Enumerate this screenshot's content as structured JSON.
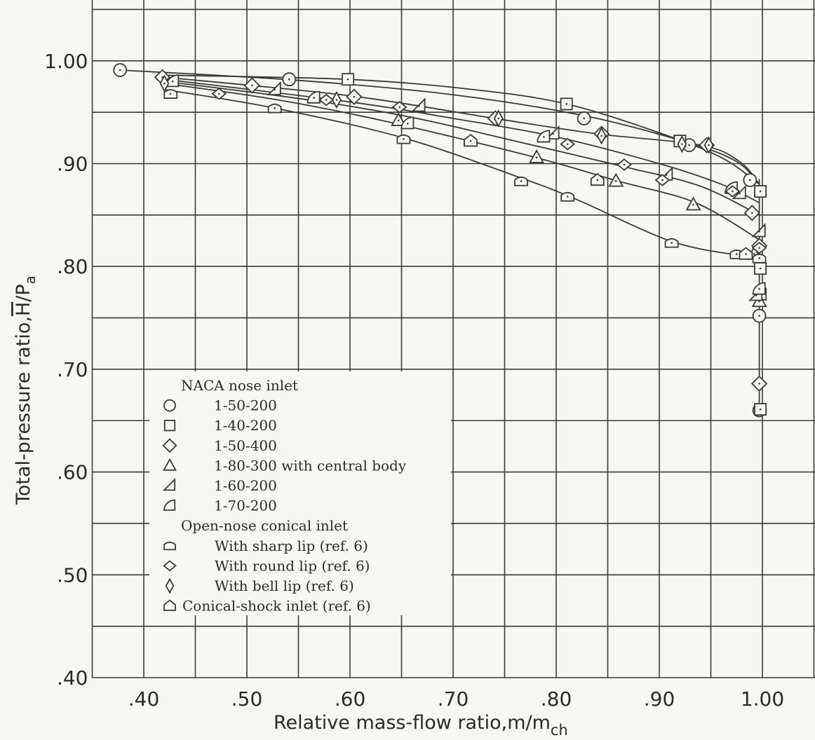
{
  "chart_data": {
    "type": "scatter",
    "title": "",
    "xlabel": "Relative  mass-flow ratio,m/m",
    "xlabel_sub": "ch",
    "ylabel": "Total-pressure ratio,",
    "ylabel_symbol": "H",
    "ylabel_tail": "/P",
    "ylabel_sub": "a",
    "xlim": [
      0.35,
      1.06
    ],
    "ylim": [
      0.4,
      1.05
    ],
    "grid": true,
    "x_ticks": [
      0.4,
      0.5,
      0.6,
      0.7,
      0.8,
      0.9,
      1.0
    ],
    "x_tick_labels": [
      ".40",
      ".50",
      ".60",
      ".70",
      ".80",
      ".90",
      "1.00"
    ],
    "y_ticks": [
      0.4,
      0.5,
      0.6,
      0.7,
      0.8,
      0.9,
      1.0
    ],
    "y_tick_labels": [
      ".40",
      ".50",
      ".60",
      ".70",
      ".80",
      ".90",
      "1.00"
    ],
    "legend": {
      "placement": "lower-left",
      "entries": [
        {
          "kind": "header",
          "text": "NACA nose inlet"
        },
        {
          "kind": "entry",
          "marker": "circle",
          "text": "1-50-200"
        },
        {
          "kind": "entry",
          "marker": "square",
          "text": "1-40-200"
        },
        {
          "kind": "entry",
          "marker": "diamond",
          "text": "1-50-400"
        },
        {
          "kind": "entry",
          "marker": "triangle",
          "text": "1-80-300 with central body"
        },
        {
          "kind": "entry",
          "marker": "half-triangle",
          "text": "1-60-200"
        },
        {
          "kind": "entry",
          "marker": "half-d",
          "text": "1-70-200"
        },
        {
          "kind": "header",
          "text": "Open-nose conical inlet"
        },
        {
          "kind": "entry",
          "marker": "flat-square",
          "text": "With sharp lip (ref. 6)"
        },
        {
          "kind": "entry",
          "marker": "flat-diamond",
          "text": "With round lip (ref. 6)"
        },
        {
          "kind": "entry",
          "marker": "narrow-diamond",
          "text": "With bell lip (ref. 6)"
        },
        {
          "kind": "entry",
          "marker": "pentagon",
          "text": "Conical-shock inlet (ref. 6)"
        }
      ]
    },
    "series": [
      {
        "marker": "circle",
        "points": [
          [
            0.377,
            0.991
          ],
          [
            0.541,
            0.982
          ],
          [
            0.827,
            0.944
          ],
          [
            0.929,
            0.918
          ],
          [
            0.988,
            0.884
          ],
          [
            0.997,
            0.752
          ],
          [
            0.997,
            0.66
          ]
        ]
      },
      {
        "marker": "square",
        "points": [
          [
            0.598,
            0.982
          ],
          [
            0.81,
            0.958
          ],
          [
            0.92,
            0.922
          ],
          [
            0.998,
            0.873
          ],
          [
            0.998,
            0.798
          ],
          [
            0.998,
            0.773
          ],
          [
            0.998,
            0.661
          ]
        ]
      },
      {
        "marker": "diamond",
        "points": [
          [
            0.418,
            0.984
          ],
          [
            0.505,
            0.976
          ],
          [
            0.604,
            0.965
          ],
          [
            0.741,
            0.944
          ],
          [
            0.844,
            0.929
          ],
          [
            0.946,
            0.918
          ],
          [
            0.99,
            0.852
          ],
          [
            0.997,
            0.82
          ],
          [
            0.997,
            0.686
          ]
        ]
      },
      {
        "marker": "triangle",
        "points": [
          [
            0.647,
            0.942
          ],
          [
            0.781,
            0.906
          ],
          [
            0.858,
            0.883
          ],
          [
            0.933,
            0.86
          ],
          [
            0.992,
            0.812
          ],
          [
            0.997,
            0.766
          ]
        ]
      },
      {
        "marker": "half-triangle",
        "points": [
          [
            0.527,
            0.972
          ],
          [
            0.667,
            0.956
          ],
          [
            0.797,
            0.929
          ],
          [
            0.907,
            0.889
          ],
          [
            0.978,
            0.871
          ],
          [
            0.997,
            0.834
          ],
          [
            0.994,
            0.772
          ]
        ]
      },
      {
        "marker": "half-d",
        "points": [
          [
            0.428,
            0.98
          ],
          [
            0.565,
            0.964
          ],
          [
            0.656,
            0.939
          ],
          [
            0.788,
            0.926
          ],
          [
            0.97,
            0.876
          ],
          [
            0.997,
            0.778
          ]
        ]
      },
      {
        "marker": "flat-square",
        "points": [
          [
            0.426,
            0.968
          ],
          [
            0.527,
            0.954
          ],
          [
            0.652,
            0.924
          ],
          [
            0.766,
            0.883
          ],
          [
            0.811,
            0.868
          ],
          [
            0.912,
            0.823
          ],
          [
            0.975,
            0.812
          ],
          [
            0.997,
            0.808
          ]
        ]
      },
      {
        "marker": "flat-diamond",
        "points": [
          [
            0.473,
            0.968
          ],
          [
            0.577,
            0.962
          ],
          [
            0.648,
            0.955
          ],
          [
            0.811,
            0.919
          ],
          [
            0.866,
            0.899
          ],
          [
            0.903,
            0.884
          ],
          [
            0.971,
            0.873
          ],
          [
            0.997,
            0.818
          ]
        ]
      },
      {
        "marker": "narrow-diamond",
        "points": [
          [
            0.42,
            0.978
          ],
          [
            0.587,
            0.962
          ],
          [
            0.744,
            0.944
          ],
          [
            0.844,
            0.927
          ],
          [
            0.922,
            0.919
          ],
          [
            0.948,
            0.918
          ]
        ]
      },
      {
        "marker": "pentagon",
        "points": [
          [
            0.717,
            0.922
          ],
          [
            0.84,
            0.884
          ],
          [
            0.984,
            0.812
          ]
        ]
      }
    ],
    "curves": [
      [
        [
          0.377,
          0.991
        ],
        [
          0.55,
          0.981
        ],
        [
          0.7,
          0.967
        ],
        [
          0.83,
          0.946
        ],
        [
          0.929,
          0.92
        ],
        [
          0.975,
          0.902
        ],
        [
          0.997,
          0.88
        ]
      ],
      [
        [
          0.42,
          0.986
        ],
        [
          0.598,
          0.982
        ],
        [
          0.72,
          0.972
        ],
        [
          0.81,
          0.958
        ],
        [
          0.9,
          0.93
        ],
        [
          0.96,
          0.906
        ],
        [
          0.997,
          0.88
        ]
      ],
      [
        [
          0.42,
          0.984
        ],
        [
          0.6,
          0.966
        ],
        [
          0.74,
          0.944
        ],
        [
          0.84,
          0.929
        ],
        [
          0.94,
          0.918
        ],
        [
          0.978,
          0.902
        ],
        [
          0.997,
          0.88
        ]
      ],
      [
        [
          0.42,
          0.982
        ],
        [
          0.6,
          0.96
        ],
        [
          0.7,
          0.944
        ],
        [
          0.8,
          0.926
        ],
        [
          0.9,
          0.9
        ],
        [
          0.96,
          0.88
        ],
        [
          0.997,
          0.862
        ]
      ],
      [
        [
          0.42,
          0.98
        ],
        [
          0.56,
          0.962
        ],
        [
          0.66,
          0.945
        ],
        [
          0.76,
          0.922
        ],
        [
          0.87,
          0.896
        ],
        [
          0.94,
          0.878
        ],
        [
          0.997,
          0.85
        ]
      ],
      [
        [
          0.42,
          0.978
        ],
        [
          0.53,
          0.962
        ],
        [
          0.64,
          0.94
        ],
        [
          0.78,
          0.906
        ],
        [
          0.86,
          0.883
        ],
        [
          0.935,
          0.862
        ],
        [
          0.997,
          0.826
        ]
      ],
      [
        [
          0.42,
          0.972
        ],
        [
          0.527,
          0.954
        ],
        [
          0.652,
          0.925
        ],
        [
          0.766,
          0.886
        ],
        [
          0.82,
          0.865
        ],
        [
          0.91,
          0.825
        ],
        [
          0.975,
          0.811
        ],
        [
          0.997,
          0.808
        ]
      ],
      [
        [
          0.997,
          0.885
        ],
        [
          0.997,
          0.66
        ]
      ]
    ]
  }
}
